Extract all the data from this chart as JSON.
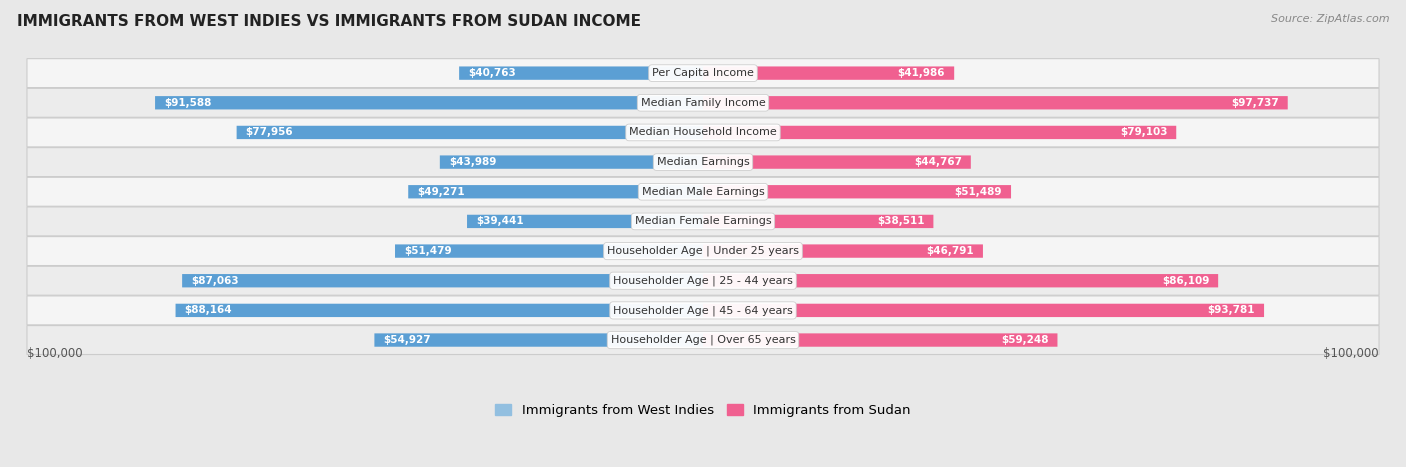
{
  "title": "IMMIGRANTS FROM WEST INDIES VS IMMIGRANTS FROM SUDAN INCOME",
  "source": "Source: ZipAtlas.com",
  "categories": [
    "Per Capita Income",
    "Median Family Income",
    "Median Household Income",
    "Median Earnings",
    "Median Male Earnings",
    "Median Female Earnings",
    "Householder Age | Under 25 years",
    "Householder Age | 25 - 44 years",
    "Householder Age | 45 - 64 years",
    "Householder Age | Over 65 years"
  ],
  "west_indies": [
    40763,
    91588,
    77956,
    43989,
    49271,
    39441,
    51479,
    87063,
    88164,
    54927
  ],
  "sudan": [
    41986,
    97737,
    79103,
    44767,
    51489,
    38511,
    46791,
    86109,
    93781,
    59248
  ],
  "west_indies_labels": [
    "$40,763",
    "$91,588",
    "$77,956",
    "$43,989",
    "$49,271",
    "$39,441",
    "$51,479",
    "$87,063",
    "$88,164",
    "$54,927"
  ],
  "sudan_labels": [
    "$41,986",
    "$97,737",
    "$79,103",
    "$44,767",
    "$51,489",
    "$38,511",
    "$46,791",
    "$86,109",
    "$93,781",
    "$59,248"
  ],
  "max_value": 100000,
  "color_west_indies": "#92bfe0",
  "color_west_indies_strong": "#5b9fd4",
  "color_sudan": "#f5b8cc",
  "color_sudan_strong": "#f06090",
  "bg_color": "#e8e8e8",
  "row_bg_even": "#f5f5f5",
  "row_bg_odd": "#ececec",
  "bar_height": 0.45,
  "inside_label_threshold": 0.3,
  "xlabel_left": "$100,000",
  "xlabel_right": "$100,000",
  "legend_west_indies": "Immigrants from West Indies",
  "legend_sudan": "Immigrants from Sudan"
}
